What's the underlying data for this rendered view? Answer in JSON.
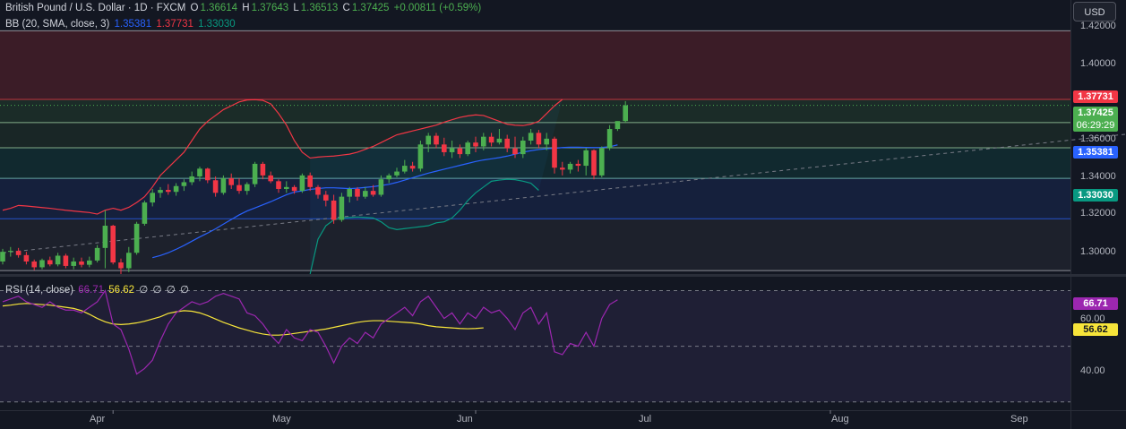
{
  "header": {
    "symbol": "British Pound / U.S. Dollar · 1D · FXCM",
    "o_label": "O",
    "o_val": "1.36614",
    "h_label": "H",
    "h_val": "1.37643",
    "l_label": "L",
    "l_val": "1.36513",
    "c_label": "C",
    "c_val": "1.37425",
    "change": "+0.00811 (+0.59%)"
  },
  "bb_legend": {
    "label": "BB (20, SMA, close, 3)",
    "mid": "1.35381",
    "upper": "1.37731",
    "lower": "1.33030"
  },
  "rsi_legend": {
    "label": "RSI (14, close)",
    "rsi": "66.71",
    "ma": "56.62",
    "extra": [
      "∅",
      "∅",
      "∅",
      "∅"
    ]
  },
  "currency_button": "USD",
  "price_tags": {
    "upper": "1.37731",
    "last": "1.37425",
    "countdown": "06:29:29",
    "mid": "1.35381",
    "lower": "1.33030",
    "rsi": "66.71",
    "rsi_ma": "56.62"
  },
  "colors": {
    "up": "#4caf50",
    "down": "#f23645",
    "bb_mid": "#2962ff",
    "bb_upper": "#f23645",
    "bb_lower": "#089981",
    "rsi": "#9c27b0",
    "rsi_ma": "#f7e53a",
    "bg": "#131722"
  },
  "chart_data": [
    {
      "type": "candlestick",
      "title": "British Pound / U.S. Dollar · 1D · FXCM",
      "y_ticks": [
        "1.42000",
        "1.40000",
        "1.36000",
        "1.34000",
        "1.32000",
        "1.30000"
      ],
      "y_tick_values": [
        1.42,
        1.4,
        1.36,
        1.34,
        1.32,
        1.3
      ],
      "ylim": [
        1.287,
        1.425
      ],
      "x_ticks": [
        "Apr",
        "May",
        "Jun",
        "Jul",
        "Aug",
        "Sep"
      ],
      "x_tick_bars": [
        14,
        60,
        105,
        153,
        203,
        246
      ],
      "horizontal_levels": [
        1.4128,
        1.3773,
        1.3653,
        1.3523,
        1.3365,
        1.3156,
        1.2888
      ],
      "trendline": {
        "from_bar": 0,
        "from_price": 1.298,
        "to_bar": 258,
        "to_price": 1.409
      },
      "ohlc": [
        [
          1.2935,
          1.3,
          1.292,
          1.2985
        ],
        [
          1.2985,
          1.301,
          1.296,
          1.299
        ],
        [
          1.299,
          1.3005,
          1.2955,
          1.2968
        ],
        [
          1.2968,
          1.2985,
          1.292,
          1.2935
        ],
        [
          1.2935,
          1.2945,
          1.289,
          1.2905
        ],
        [
          1.2905,
          1.295,
          1.2895,
          1.2942
        ],
        [
          1.2942,
          1.296,
          1.291,
          1.292
        ],
        [
          1.292,
          1.298,
          1.291,
          1.2965
        ],
        [
          1.2965,
          1.2975,
          1.29,
          1.2912
        ],
        [
          1.2912,
          1.2955,
          1.2895,
          1.2935
        ],
        [
          1.2935,
          1.2955,
          1.2905,
          1.2918
        ],
        [
          1.2918,
          1.296,
          1.2905,
          1.294
        ],
        [
          1.294,
          1.302,
          1.293,
          1.3005
        ],
        [
          1.3005,
          1.32,
          1.29,
          1.312
        ],
        [
          1.312,
          1.3125,
          1.292,
          1.293
        ],
        [
          1.293,
          1.295,
          1.287,
          1.29
        ],
        [
          1.29,
          1.301,
          1.288,
          1.298
        ],
        [
          1.298,
          1.314,
          1.297,
          1.313
        ],
        [
          1.313,
          1.325,
          1.312,
          1.324
        ],
        [
          1.324,
          1.331,
          1.322,
          1.329
        ],
        [
          1.329,
          1.332,
          1.3265,
          1.3305
        ],
        [
          1.3305,
          1.3335,
          1.328,
          1.3295
        ],
        [
          1.3295,
          1.334,
          1.3275,
          1.3325
        ],
        [
          1.3325,
          1.336,
          1.33,
          1.3345
        ],
        [
          1.3345,
          1.34,
          1.333,
          1.3375
        ],
        [
          1.3375,
          1.3425,
          1.335,
          1.3415
        ],
        [
          1.3415,
          1.342,
          1.334,
          1.3355
        ],
        [
          1.3355,
          1.3375,
          1.327,
          1.329
        ],
        [
          1.329,
          1.338,
          1.328,
          1.3365
        ],
        [
          1.3365,
          1.339,
          1.331,
          1.333
        ],
        [
          1.333,
          1.3365,
          1.3285,
          1.33
        ],
        [
          1.33,
          1.3345,
          1.328,
          1.3335
        ],
        [
          1.3335,
          1.345,
          1.332,
          1.344
        ],
        [
          1.344,
          1.345,
          1.336,
          1.338
        ],
        [
          1.338,
          1.34,
          1.334,
          1.335
        ],
        [
          1.335,
          1.336,
          1.329,
          1.331
        ],
        [
          1.331,
          1.335,
          1.329,
          1.332
        ],
        [
          1.332,
          1.333,
          1.3285,
          1.33
        ],
        [
          1.33,
          1.339,
          1.329,
          1.338
        ],
        [
          1.338,
          1.3395,
          1.33,
          1.332
        ],
        [
          1.332,
          1.333,
          1.326,
          1.328
        ],
        [
          1.328,
          1.33,
          1.322,
          1.325
        ],
        [
          1.325,
          1.328,
          1.313,
          1.315
        ],
        [
          1.315,
          1.329,
          1.314,
          1.327
        ],
        [
          1.327,
          1.332,
          1.324,
          1.331
        ],
        [
          1.331,
          1.332,
          1.325,
          1.327
        ],
        [
          1.327,
          1.332,
          1.326,
          1.33
        ],
        [
          1.33,
          1.333,
          1.327,
          1.328
        ],
        [
          1.328,
          1.338,
          1.327,
          1.336
        ],
        [
          1.336,
          1.339,
          1.334,
          1.338
        ],
        [
          1.338,
          1.342,
          1.337,
          1.34
        ],
        [
          1.34,
          1.346,
          1.339,
          1.343
        ],
        [
          1.343,
          1.345,
          1.34,
          1.3415
        ],
        [
          1.3415,
          1.356,
          1.34,
          1.354
        ],
        [
          1.354,
          1.36,
          1.35,
          1.3585
        ],
        [
          1.3585,
          1.36,
          1.352,
          1.354
        ],
        [
          1.354,
          1.3575,
          1.348,
          1.35
        ],
        [
          1.35,
          1.356,
          1.347,
          1.352
        ],
        [
          1.352,
          1.354,
          1.347,
          1.349
        ],
        [
          1.349,
          1.356,
          1.348,
          1.355
        ],
        [
          1.355,
          1.358,
          1.35,
          1.353
        ],
        [
          1.353,
          1.36,
          1.351,
          1.358
        ],
        [
          1.358,
          1.36,
          1.353,
          1.355
        ],
        [
          1.355,
          1.362,
          1.354,
          1.357
        ],
        [
          1.357,
          1.359,
          1.35,
          1.352
        ],
        [
          1.352,
          1.358,
          1.347,
          1.349
        ],
        [
          1.349,
          1.358,
          1.347,
          1.356
        ],
        [
          1.356,
          1.362,
          1.354,
          1.36
        ],
        [
          1.36,
          1.3615,
          1.352,
          1.354
        ],
        [
          1.354,
          1.36,
          1.351,
          1.357
        ],
        [
          1.357,
          1.358,
          1.339,
          1.342
        ],
        [
          1.342,
          1.345,
          1.338,
          1.341
        ],
        [
          1.341,
          1.345,
          1.339,
          1.344
        ],
        [
          1.344,
          1.346,
          1.34,
          1.343
        ],
        [
          1.343,
          1.352,
          1.338,
          1.351
        ],
        [
          1.351,
          1.3515,
          1.336,
          1.338
        ],
        [
          1.338,
          1.353,
          1.337,
          1.352
        ],
        [
          1.352,
          1.364,
          1.351,
          1.362
        ],
        [
          1.362,
          1.366,
          1.361,
          1.3661
        ],
        [
          1.3661,
          1.3764,
          1.3651,
          1.37425
        ]
      ]
    },
    {
      "type": "line",
      "name": "BB (20, SMA, close, 3)",
      "series": [
        {
          "name": "basis",
          "color": "#2962ff",
          "from_bar": 19,
          "values": [
            1.2955,
            1.2966,
            1.298,
            1.2998,
            1.3018,
            1.304,
            1.3062,
            1.3082,
            1.3104,
            1.3128,
            1.3152,
            1.3176,
            1.3196,
            1.3212,
            1.3228,
            1.3244,
            1.3262,
            1.328,
            1.3294,
            1.33,
            1.3308,
            1.3312,
            1.3316,
            1.3316,
            1.3314,
            1.3312,
            1.3314,
            1.3318,
            1.3322,
            1.3328,
            1.3334,
            1.3344,
            1.3356,
            1.3368,
            1.338,
            1.3392,
            1.3402,
            1.3412,
            1.3422,
            1.3432,
            1.3442,
            1.3452,
            1.346,
            1.3466,
            1.3472,
            1.348,
            1.349,
            1.35,
            1.3508,
            1.3514,
            1.3518,
            1.352,
            1.3524,
            1.3526,
            1.3526,
            1.3525,
            1.3524,
            1.3525,
            1.3528,
            1.3538
          ]
        },
        {
          "name": "upper",
          "color": "#f23645",
          "from_bar": 0,
          "values": [
            1.32,
            1.321,
            1.3225,
            1.3222,
            1.3218,
            1.3214,
            1.321,
            1.3205,
            1.32,
            1.3196,
            1.3192,
            1.3188,
            1.318,
            1.32,
            1.321,
            1.32,
            1.3215,
            1.324,
            1.327,
            1.332,
            1.338,
            1.342,
            1.346,
            1.35,
            1.356,
            1.362,
            1.366,
            1.369,
            1.372,
            1.374,
            1.376,
            1.377,
            1.3772,
            1.3768,
            1.375,
            1.37,
            1.364,
            1.356,
            1.35,
            1.347,
            1.3475,
            1.3478,
            1.348,
            1.3485,
            1.349,
            1.35,
            1.3515,
            1.353,
            1.355,
            1.357,
            1.359,
            1.36,
            1.361,
            1.362,
            1.363,
            1.364,
            1.3655,
            1.3668,
            1.368,
            1.3688,
            1.3693,
            1.369,
            1.3675,
            1.366,
            1.3645,
            1.364,
            1.3638,
            1.3645,
            1.366,
            1.37,
            1.374,
            1.3773
          ]
        },
        {
          "name": "lower",
          "color": "#089981",
          "from_bar": 39,
          "values": [
            1.287,
            1.305,
            1.312,
            1.315,
            1.316,
            1.3163,
            1.3165,
            1.3163,
            1.316,
            1.314,
            1.311,
            1.31,
            1.3105,
            1.311,
            1.3115,
            1.312,
            1.3135,
            1.314,
            1.316,
            1.32,
            1.325,
            1.329,
            1.332,
            1.335,
            1.3356,
            1.336,
            1.3358,
            1.335,
            1.334,
            1.3303
          ]
        }
      ]
    },
    {
      "type": "line",
      "name": "RSI (14, close)",
      "y_ticks": [
        "60.00",
        "40.00"
      ],
      "y_tick_values": [
        60,
        40
      ],
      "ylim": [
        27,
        75
      ],
      "levels": [
        70,
        50,
        30
      ],
      "series": [
        {
          "name": "rsi",
          "color": "#9c27b0",
          "values": [
            66,
            67,
            68,
            66,
            65,
            64,
            66,
            64,
            63,
            63,
            62,
            64,
            66,
            70,
            58,
            56,
            49,
            40,
            42,
            45,
            52,
            58,
            62,
            64,
            66,
            65,
            66,
            68,
            69,
            68,
            67,
            62,
            61,
            58,
            54,
            51,
            56,
            53,
            52,
            56,
            55,
            50,
            44,
            50,
            53,
            51,
            55,
            53,
            58,
            60,
            62,
            64,
            61,
            66,
            68,
            64,
            60,
            62,
            58,
            62,
            60,
            64,
            62,
            63,
            60,
            56,
            62,
            64,
            58,
            62,
            48,
            47,
            51,
            50,
            55,
            50,
            60,
            65,
            66.71
          ]
        },
        {
          "name": "rsi_ma",
          "color": "#f7e53a",
          "from_bar": 0,
          "values": [
            64.5,
            64.8,
            65.2,
            65.4,
            65.2,
            65.0,
            64.8,
            64.4,
            64.0,
            63.6,
            62.8,
            61.5,
            60.0,
            58.8,
            58.0,
            57.8,
            58.0,
            58.4,
            59.0,
            59.8,
            60.6,
            61.8,
            62.4,
            62.8,
            62.6,
            62.0,
            61.0,
            59.8,
            58.6,
            57.6,
            56.6,
            55.8,
            55.0,
            54.4,
            54.0,
            54.0,
            54.2,
            54.6,
            55.0,
            55.4,
            55.8,
            56.2,
            56.8,
            57.4,
            58.0,
            58.6,
            59.0,
            59.2,
            59.2,
            59.0,
            58.8,
            58.6,
            58.4,
            58.0,
            57.4,
            57.0,
            56.8,
            56.6,
            56.4,
            56.3,
            56.4,
            56.62
          ]
        }
      ]
    }
  ]
}
